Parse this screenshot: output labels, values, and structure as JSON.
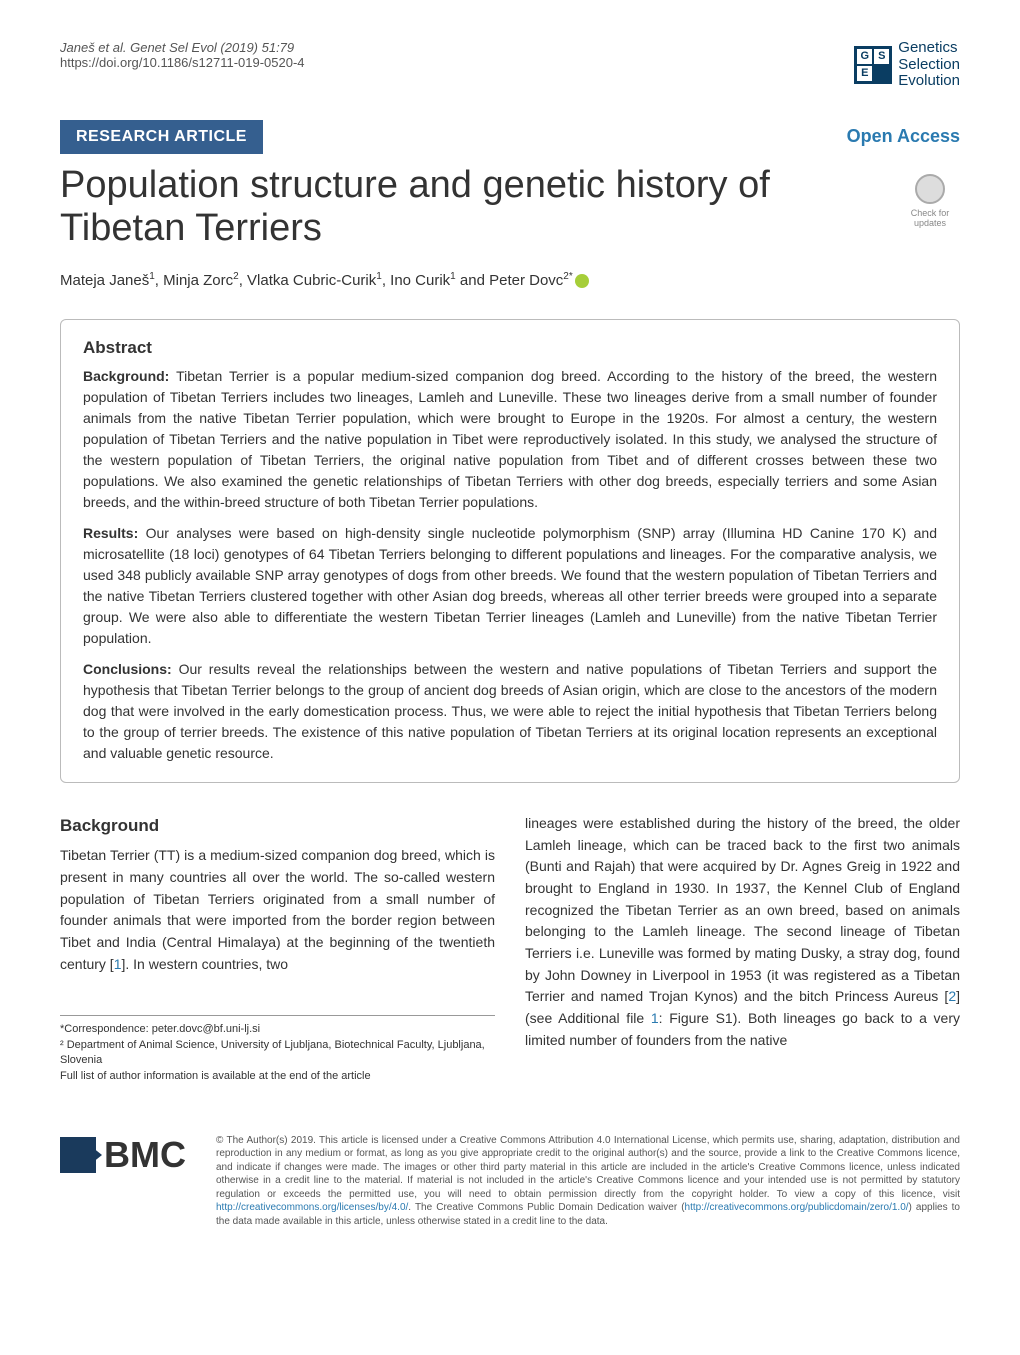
{
  "header": {
    "citation": "Janeš et al. Genet Sel Evol     (2019) 51:79",
    "doi": "https://doi.org/10.1186/s12711-019-0520-4",
    "logo_text_1": "Genetics",
    "logo_text_2": "Selection",
    "logo_text_3": "Evolution"
  },
  "article_type": "RESEARCH ARTICLE",
  "open_access": "Open Access",
  "title": "Population structure and genetic history of Tibetan Terriers",
  "check_updates": "Check for updates",
  "authors": "Mateja Janeš¹, Minja Zorc², Vlatka Cubric-Curik¹, Ino Curik¹ and Peter Dovc²*",
  "abstract": {
    "heading": "Abstract",
    "background_label": "Background:",
    "background": " Tibetan Terrier is a popular medium-sized companion dog breed. According to the history of the breed, the western population of Tibetan Terriers includes two lineages, Lamleh and Luneville. These two lineages derive from a small number of founder animals from the native Tibetan Terrier population, which were brought to Europe in the 1920s. For almost a century, the western population of Tibetan Terriers and the native population in Tibet were reproductively isolated. In this study, we analysed the structure of the western population of Tibetan Terriers, the original native population from Tibet and of different crosses between these two populations. We also examined the genetic relationships of Tibetan Terriers with other dog breeds, especially terriers and some Asian breeds, and the within-breed structure of both Tibetan Terrier populations.",
    "results_label": "Results:",
    "results": " Our analyses were based on high-density single nucleotide polymorphism (SNP) array (Illumina HD Canine 170 K) and microsatellite (18 loci) genotypes of 64 Tibetan Terriers belonging to different populations and lineages. For the comparative analysis, we used 348 publicly available SNP array genotypes of dogs from other breeds. We found that the western population of Tibetan Terriers and the native Tibetan Terriers clustered together with other Asian dog breeds, whereas all other terrier breeds were grouped into a separate group. We were also able to differentiate the western Tibetan Terrier lineages (Lamleh and Luneville) from the native Tibetan Terrier population.",
    "conclusions_label": "Conclusions:",
    "conclusions": " Our results reveal the relationships between the western and native populations of Tibetan Terriers and support the hypothesis that Tibetan Terrier belongs to the group of ancient dog breeds of Asian origin, which are close to the ancestors of the modern dog that were involved in the early domestication process. Thus, we were able to reject the initial hypothesis that Tibetan Terriers belong to the group of terrier breeds. The existence of this native population of Tibetan Terriers at its original location represents an exceptional and valuable genetic resource."
  },
  "body": {
    "background_heading": "Background",
    "col1": "Tibetan Terrier (TT) is a medium-sized companion dog breed, which is present in many countries all over the world. The so-called western population of Tibetan Terriers originated from a small number of founder animals that were imported from the border region between Tibet and India (Central Himalaya) at the beginning of the twentieth century [1]. In western countries, two",
    "col2": "lineages were established during the history of the breed, the older Lamleh lineage, which can be traced back to the first two animals (Bunti and Rajah) that were acquired by Dr. Agnes Greig in 1922 and brought to England in 1930. In 1937, the Kennel Club of England recognized the Tibetan Terrier as an own breed, based on animals belonging to the Lamleh lineage. The second lineage of Tibetan Terriers i.e. Luneville was formed by mating Dusky, a stray dog, found by John Downey in Liverpool in 1953 (it was registered as a Tibetan Terrier and named Trojan Kynos) and the bitch Princess Aureus [2] (see Additional file 1: Figure S1). Both lineages go back to a very limited number of founders from the native"
  },
  "correspondence": {
    "line1": "*Correspondence:  peter.dovc@bf.uni-lj.si",
    "line2": "² Department of Animal Science, University of Ljubljana, Biotechnical Faculty, Ljubljana, Slovenia",
    "line3": "Full list of author information is available at the end of the article"
  },
  "footer": {
    "bmc": "BMC",
    "license": "© The Author(s) 2019. This article is licensed under a Creative Commons Attribution 4.0 International License, which permits use, sharing, adaptation, distribution and reproduction in any medium or format, as long as you give appropriate credit to the original author(s) and the source, provide a link to the Creative Commons licence, and indicate if changes were made. The images or other third party material in this article are included in the article's Creative Commons licence, unless indicated otherwise in a credit line to the material. If material is not included in the article's Creative Commons licence and your intended use is not permitted by statutory regulation or exceeds the permitted use, you will need to obtain permission directly from the copyright holder. To view a copy of this licence, visit http://creativecommons.org/licenses/by/4.0/. The Creative Commons Public Domain Dedication waiver (http://creativecommons.org/publicdomain/zero/1.0/) applies to the data made available in this article, unless otherwise stated in a credit line to the data."
  },
  "colors": {
    "article_type_bg": "#355f8f",
    "open_access": "#2a7ab0",
    "navy": "#0a3d62",
    "orcid": "#a6ce39"
  }
}
